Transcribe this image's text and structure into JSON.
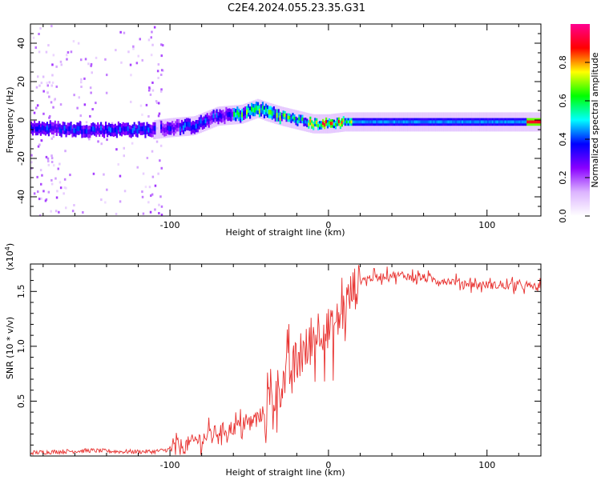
{
  "title": "C2E4.2024.055.23.35.G31",
  "chart_data": [
    {
      "type": "heatmap",
      "xlabel": "Height of straight line (km)",
      "ylabel": "Frequency (Hz)",
      "xlim": [
        -188,
        134
      ],
      "ylim": [
        -50,
        50
      ],
      "xticks": [
        -100,
        0,
        100
      ],
      "yticks": [
        -40,
        -20,
        0,
        20,
        40
      ],
      "colorbar": {
        "label": "Normalized spectral amplitude",
        "range": [
          0,
          1
        ],
        "ticks": [
          "0.0",
          "0.2",
          "0.4",
          "0.6",
          "0.8"
        ],
        "colors": [
          "#ffffff",
          "#dcb4ff",
          "#8a00ff",
          "#0000ff",
          "#00ffff",
          "#00ff00",
          "#ffff00",
          "#ff0000",
          "#ff0090"
        ]
      },
      "ridge_freq_hz": {
        "x": [
          -188,
          -160,
          -130,
          -110,
          -100,
          -85,
          -70,
          -55,
          -45,
          -38,
          -30,
          -20,
          -10,
          0,
          10,
          50,
          100,
          134
        ],
        "y": [
          -4,
          -5,
          -5,
          -5,
          -4,
          -3,
          2,
          3,
          6,
          4,
          2,
          0,
          -2,
          -2,
          -1,
          -1,
          -1,
          -1
        ]
      }
    },
    {
      "type": "line",
      "xlabel": "Height of straight line (km)",
      "ylabel": "SNR (10 * v/v)",
      "multiplier": "(x10",
      "multiplier_exp": "4",
      "multiplier_close": ")",
      "xlim": [
        -188,
        134
      ],
      "ylim": [
        0,
        1.75
      ],
      "xticks": [
        -100,
        0,
        100
      ],
      "yticks": [
        "0.5",
        "1.0",
        "1.5"
      ],
      "series": [
        {
          "color": "#e8312f",
          "x": [
            -188,
            -170,
            -150,
            -130,
            -110,
            -100,
            -90,
            -80,
            -70,
            -60,
            -50,
            -40,
            -35,
            -30,
            -25,
            -20,
            -15,
            -10,
            -5,
            0,
            5,
            10,
            15,
            20,
            25,
            30,
            40,
            50,
            60,
            70,
            80,
            90,
            100,
            110,
            120,
            134
          ],
          "y": [
            0.03,
            0.04,
            0.05,
            0.04,
            0.04,
            0.06,
            0.1,
            0.16,
            0.22,
            0.26,
            0.3,
            0.4,
            0.55,
            0.65,
            0.75,
            0.85,
            0.95,
            1.05,
            1.2,
            1.1,
            1.2,
            1.35,
            1.5,
            1.6,
            1.62,
            1.63,
            1.65,
            1.64,
            1.62,
            1.6,
            1.59,
            1.57,
            1.56,
            1.55,
            1.55,
            1.54
          ]
        }
      ]
    }
  ]
}
